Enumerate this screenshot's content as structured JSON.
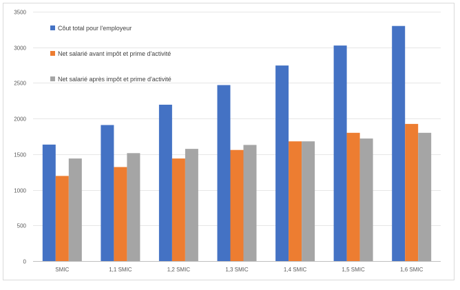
{
  "chart_data": {
    "type": "bar",
    "categories": [
      "SMIC",
      "1,1 SMIC",
      "1,2 SMIC",
      "1,3 SMIC",
      "1,4 SMIC",
      "1,5 SMIC",
      "1,6 SMIC"
    ],
    "series": [
      {
        "name": "Côut total pour l'employeur",
        "color": "#4472c4",
        "values": [
          1635,
          1910,
          2195,
          2470,
          2745,
          3025,
          3300
        ]
      },
      {
        "name": "Net salarié avant impôt et prime d'activité",
        "color": "#ed7d31",
        "values": [
          1195,
          1320,
          1440,
          1560,
          1680,
          1800,
          1925
        ]
      },
      {
        "name": "Net salarié après impôt et prime d'activité",
        "color": "#a5a5a5",
        "values": [
          1440,
          1515,
          1575,
          1630,
          1680,
          1720,
          1800
        ]
      }
    ],
    "yticks": [
      "0",
      "500",
      "1000",
      "1500",
      "2000",
      "2500",
      "3000",
      "3500"
    ],
    "ylim": [
      0,
      3500
    ],
    "grid": true,
    "legend_position": "top-left (inside plot)",
    "title": "",
    "xlabel": "",
    "ylabel": ""
  }
}
